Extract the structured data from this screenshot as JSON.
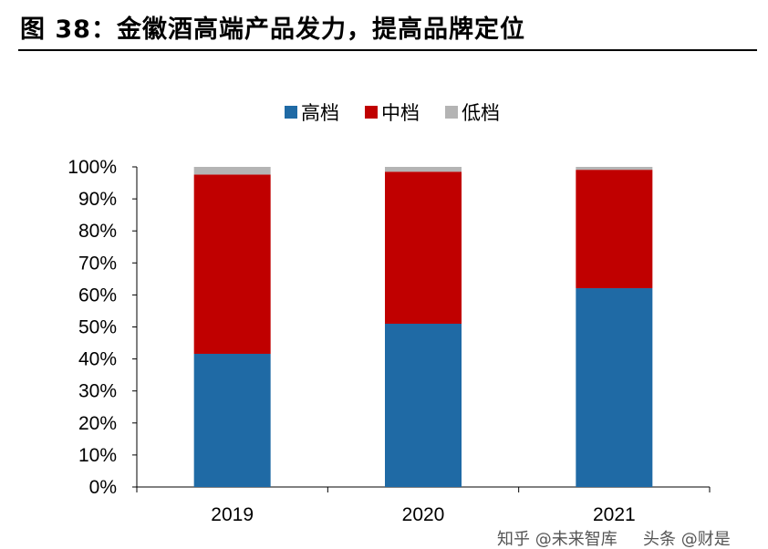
{
  "title": "图 38：金徽酒高端产品发力，提高品牌定位",
  "chart_data": {
    "type": "bar",
    "stacked": true,
    "categories": [
      "2019",
      "2020",
      "2021"
    ],
    "series": [
      {
        "name": "高档",
        "color": "#1F6AA5",
        "values": [
          41.6,
          51.0,
          62.1
        ]
      },
      {
        "name": "中档",
        "color": "#C00000",
        "values": [
          56.0,
          47.5,
          37.0
        ]
      },
      {
        "name": "低档",
        "color": "#B4B4B4",
        "values": [
          2.4,
          1.5,
          0.9
        ]
      }
    ],
    "yticks": [
      "0%",
      "10%",
      "20%",
      "30%",
      "40%",
      "50%",
      "60%",
      "70%",
      "80%",
      "90%",
      "100%"
    ],
    "ylim": [
      0,
      100
    ],
    "grid": false,
    "legend": "top"
  },
  "watermark": [
    "知乎 @未来智库",
    "头条 @财是"
  ]
}
